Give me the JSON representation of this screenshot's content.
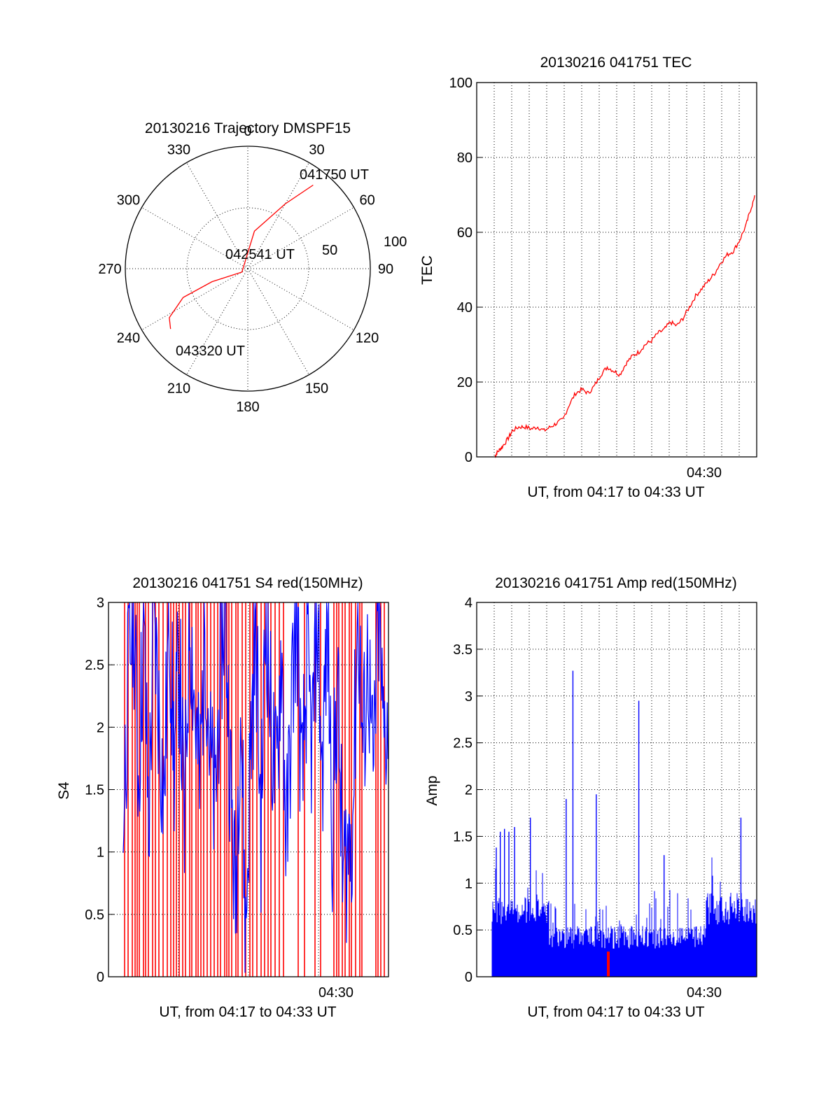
{
  "colors": {
    "red": "#ff0000",
    "blue": "#0000ff",
    "black": "#000000"
  },
  "chart_data": [
    {
      "type": "polar",
      "title": "20130216 Trajectory DMSPF15",
      "azimuth_labels": [
        "0",
        "30",
        "60",
        "90",
        "120",
        "150",
        "180",
        "210",
        "240",
        "270",
        "300",
        "330"
      ],
      "radial_labels": [
        "50",
        "100"
      ],
      "trajectory": {
        "points": [
          {
            "az": 38,
            "el": 12
          },
          {
            "az": 30,
            "el": 35
          },
          {
            "az": 10,
            "el": 62
          },
          {
            "az": 240,
            "el": 85
          },
          {
            "az": 250,
            "el": 62
          },
          {
            "az": 246,
            "el": 38
          },
          {
            "az": 238,
            "el": 22
          },
          {
            "az": 232,
            "el": 18
          }
        ],
        "annotations": [
          "041750 UT",
          "042541 UT",
          "043320 UT"
        ]
      }
    },
    {
      "type": "line",
      "title": "20130216 041751 TEC",
      "ylabel": "TEC",
      "xlabel": "UT, from 04:17 to 04:33 UT",
      "xtick_label": "04:30",
      "ylim": [
        0,
        100
      ],
      "yticks": [
        "0",
        "20",
        "40",
        "60",
        "80",
        "100"
      ],
      "series": [
        {
          "x": [
            4.17,
            4.25,
            4.4,
            4.55,
            4.8,
            5.0,
            5.3,
            5.6,
            5.9,
            6.2,
            6.5,
            6.8,
            7.1,
            7.4,
            7.7,
            8.0,
            8.3,
            8.6,
            8.9,
            9.2,
            9.5,
            9.8,
            10.1,
            10.4,
            10.7,
            11.0,
            11.3,
            11.6,
            11.9,
            12.2,
            12.5,
            12.8,
            13.1,
            13.4,
            13.7,
            14.0,
            14.3,
            14.6,
            14.9,
            15.2,
            15.5,
            15.8,
            16.1,
            16.3,
            16.55
          ],
          "values": [
            0,
            1,
            2,
            3,
            5,
            7,
            8,
            8,
            7.5,
            8,
            7,
            8,
            9,
            10,
            14,
            17,
            18,
            17,
            19,
            22,
            24,
            23,
            22,
            25,
            27,
            28,
            30,
            31,
            33,
            34,
            36,
            35,
            37,
            40,
            43,
            45,
            47,
            49,
            52,
            54,
            55,
            58,
            62,
            66,
            70
          ]
        }
      ]
    },
    {
      "type": "line",
      "title": "20130216 041751 S4 red(150MHz)",
      "ylabel": "S4",
      "xlabel": "UT, from 04:17 to 04:33 UT",
      "xtick_label": "04:30",
      "ylim": [
        0,
        3
      ],
      "yticks": [
        "0",
        "0.5",
        "1",
        "1.5",
        "2",
        "2.5",
        "3"
      ],
      "series": [
        {
          "name": "",
          "values": [
            1.3,
            2.4,
            3,
            1.6,
            2.8,
            1.2,
            3,
            2.1,
            1.4,
            3,
            1.7,
            2.6,
            1.1,
            3,
            2.2,
            1.5,
            2.9,
            1.8,
            1.3,
            2.5,
            3,
            1.6,
            0.6,
            2.3,
            0.3,
            1.9,
            2.8,
            1.2,
            3,
            2.0,
            1.5,
            2.7,
            1.0,
            2.2,
            3,
            1.4,
            2.5,
            1.8,
            3,
            1.6,
            2.9,
            1.2,
            2.4,
            0.8,
            1.0,
            1.3,
            3,
            1.8,
            2.6,
            1.5,
            3,
            1.9,
            2.2
          ]
        }
      ]
    },
    {
      "type": "bar",
      "title": "20130216 041751 Amp red(150MHz)",
      "ylabel": "Amp",
      "xlabel": "UT, from 04:17 to 04:33 UT",
      "xtick_label": "04:30",
      "ylim": [
        0,
        4
      ],
      "yticks": [
        "0",
        "0.5",
        "1",
        "1.5",
        "2",
        "2.5",
        "3",
        "3.5",
        "4"
      ],
      "peaks": [
        {
          "x": 4.23,
          "value": 1.38
        },
        {
          "x": 4.42,
          "value": 1.55
        },
        {
          "x": 4.62,
          "value": 1.58
        },
        {
          "x": 4.83,
          "value": 1.55
        },
        {
          "x": 5.1,
          "value": 1.6
        },
        {
          "x": 5.85,
          "value": 1.7
        },
        {
          "x": 7.55,
          "value": 1.9
        },
        {
          "x": 7.87,
          "value": 3.27
        },
        {
          "x": 8.98,
          "value": 1.95
        },
        {
          "x": 11.0,
          "value": 2.95
        },
        {
          "x": 12.2,
          "value": 1.3
        },
        {
          "x": 15.85,
          "value": 1.7
        }
      ]
    }
  ]
}
